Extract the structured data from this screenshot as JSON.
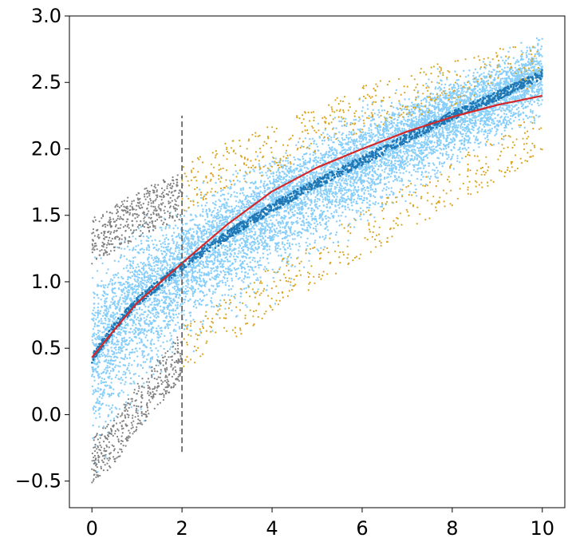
{
  "chart_data": {
    "type": "scatter",
    "title": "",
    "xlabel": "",
    "ylabel": "",
    "xlim": [
      -0.5,
      10.5
    ],
    "ylim": [
      -0.7,
      3.0
    ],
    "grid": false,
    "legend": "none",
    "x_ticks": [
      0,
      2,
      4,
      6,
      8,
      10
    ],
    "x_tick_labels": [
      "0",
      "2",
      "4",
      "6",
      "8",
      "10"
    ],
    "y_ticks": [
      -0.5,
      0.0,
      0.5,
      1.0,
      1.5,
      2.0,
      2.5,
      3.0
    ],
    "y_tick_labels": [
      "−0.5",
      "0.0",
      "0.5",
      "1.0",
      "1.5",
      "2.0",
      "2.5",
      "3.0"
    ],
    "colors": {
      "cloud": "#87cefa",
      "band_early": "#808080",
      "band_late": "#daa520",
      "median_points": "#1f77b4",
      "fit_line": "#d62728",
      "cutoff_line": "#666666"
    },
    "series": [
      {
        "kind": "scatter-envelope",
        "color": "#87cefa",
        "x_range": [
          0,
          10
        ],
        "center": [
          [
            0,
            0.42
          ],
          [
            0.5,
            0.66
          ],
          [
            1,
            0.85
          ],
          [
            2,
            1.12
          ],
          [
            3,
            1.35
          ],
          [
            4,
            1.56
          ],
          [
            5,
            1.74
          ],
          [
            6,
            1.91
          ],
          [
            7,
            2.08
          ],
          [
            8,
            2.25
          ],
          [
            9,
            2.4
          ],
          [
            10,
            2.56
          ]
        ],
        "upper": [
          [
            0,
            1.45
          ],
          [
            1,
            1.55
          ],
          [
            2,
            1.75
          ],
          [
            3,
            1.95
          ],
          [
            4,
            2.12
          ],
          [
            5,
            2.3
          ],
          [
            6,
            2.45
          ],
          [
            7,
            2.55
          ],
          [
            8,
            2.68
          ],
          [
            9,
            2.8
          ],
          [
            10,
            2.95
          ]
        ],
        "lower": [
          [
            0,
            -0.6
          ],
          [
            1,
            -0.25
          ],
          [
            2,
            0.3
          ],
          [
            3,
            0.5
          ],
          [
            4,
            0.75
          ],
          [
            5,
            1.0
          ],
          [
            6,
            1.25
          ],
          [
            7,
            1.5
          ],
          [
            8,
            1.7
          ],
          [
            9,
            1.9
          ],
          [
            10,
            2.1
          ]
        ]
      },
      {
        "kind": "edge-points",
        "color": "#808080",
        "x_range": [
          0,
          2
        ],
        "upper": [
          [
            0,
            1.3
          ],
          [
            0.5,
            1.4
          ],
          [
            1,
            1.5
          ],
          [
            1.5,
            1.58
          ],
          [
            2,
            1.65
          ]
        ],
        "lower": [
          [
            0,
            -0.35
          ],
          [
            0.5,
            -0.2
          ],
          [
            1,
            0.05
          ],
          [
            1.5,
            0.25
          ],
          [
            2,
            0.45
          ]
        ]
      },
      {
        "kind": "edge-points",
        "color": "#daa520",
        "x_range": [
          2,
          10
        ],
        "upper": [
          [
            2,
            1.7
          ],
          [
            3,
            1.88
          ],
          [
            4,
            2.0
          ],
          [
            6,
            2.3
          ],
          [
            8,
            2.5
          ],
          [
            10,
            2.65
          ]
        ],
        "lower": [
          [
            2,
            0.5
          ],
          [
            3,
            0.7
          ],
          [
            4,
            0.95
          ],
          [
            6,
            1.35
          ],
          [
            8,
            1.75
          ],
          [
            10,
            2.1
          ]
        ]
      },
      {
        "kind": "median-points",
        "color": "#1f77b4",
        "x_range": [
          0,
          10
        ],
        "points": [
          [
            0,
            0.42
          ],
          [
            0.5,
            0.66
          ],
          [
            1,
            0.85
          ],
          [
            2,
            1.12
          ],
          [
            3,
            1.35
          ],
          [
            4,
            1.56
          ],
          [
            5,
            1.74
          ],
          [
            6,
            1.91
          ],
          [
            7,
            2.08
          ],
          [
            8,
            2.25
          ],
          [
            9,
            2.4
          ],
          [
            10,
            2.56
          ]
        ]
      },
      {
        "kind": "line",
        "color": "#d62728",
        "x": [
          0,
          0.5,
          1,
          2,
          3,
          4,
          5,
          6,
          7,
          8,
          9,
          10
        ],
        "y": [
          0.43,
          0.64,
          0.84,
          1.14,
          1.43,
          1.68,
          1.86,
          2.0,
          2.13,
          2.24,
          2.33,
          2.4
        ]
      },
      {
        "kind": "vline",
        "color": "#666666",
        "dashed": true,
        "x": 2,
        "y_range": [
          -0.28,
          2.25
        ]
      }
    ]
  }
}
